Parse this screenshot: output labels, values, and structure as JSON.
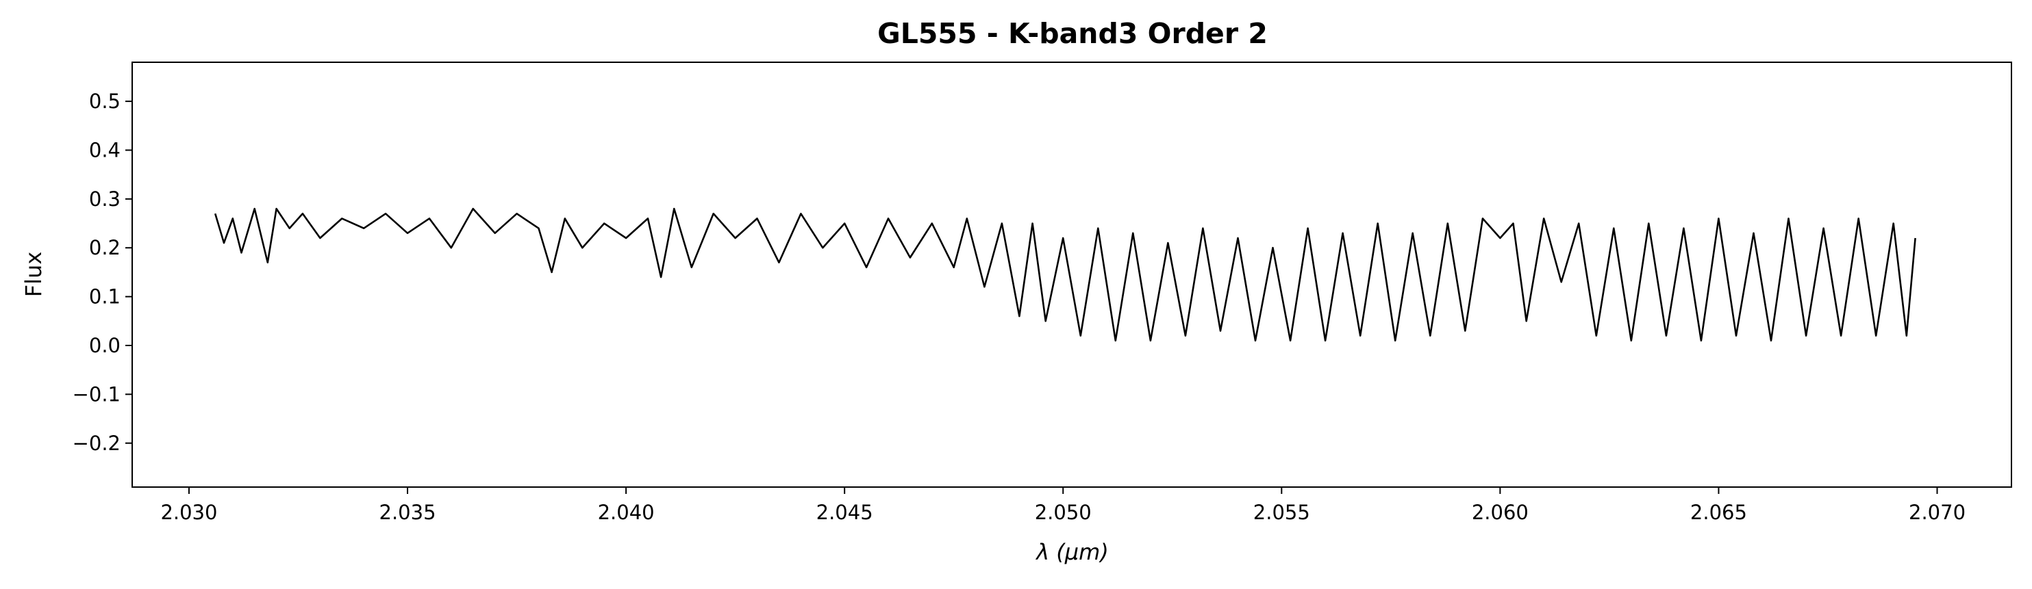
{
  "chart_data": {
    "type": "line",
    "title": "GL555 - K-band3 Order 2",
    "xlabel": "λ (μm)",
    "ylabel": "Flux",
    "xlim": [
      2.0287,
      2.0717
    ],
    "ylim": [
      -0.29,
      0.58
    ],
    "xticks": [
      "2.030",
      "2.035",
      "2.040",
      "2.045",
      "2.050",
      "2.055",
      "2.060",
      "2.065",
      "2.070"
    ],
    "yticks": [
      "0.5",
      "0.4",
      "0.3",
      "0.2",
      "0.1",
      "0.0",
      "−0.1",
      "−0.2"
    ],
    "grid": false,
    "line_color": "#000000",
    "series": [
      {
        "x": [
          2.0306,
          2.0308,
          2.031,
          2.0312,
          2.0315,
          2.0318,
          2.032,
          2.0323,
          2.0326,
          2.033,
          2.0335,
          2.034,
          2.0345,
          2.035,
          2.0355,
          2.036,
          2.0365,
          2.037,
          2.0375,
          2.038,
          2.0383,
          2.0386,
          2.039,
          2.0395,
          2.04,
          2.0405,
          2.0408,
          2.0411,
          2.0415,
          2.042,
          2.0425,
          2.043,
          2.0435,
          2.044,
          2.0445,
          2.045,
          2.0455,
          2.046,
          2.0465,
          2.047,
          2.0475,
          2.0478,
          2.0482,
          2.0486,
          2.049,
          2.0493,
          2.0496,
          2.05,
          2.0504,
          2.0508,
          2.0512,
          2.0516,
          2.052,
          2.0524,
          2.0528,
          2.0532,
          2.0536,
          2.054,
          2.0544,
          2.0548,
          2.0552,
          2.0556,
          2.056,
          2.0564,
          2.0568,
          2.0572,
          2.0576,
          2.058,
          2.0584,
          2.0588,
          2.0592,
          2.0596,
          2.06,
          2.0603,
          2.0606,
          2.061,
          2.0614,
          2.0618,
          2.0622,
          2.0626,
          2.063,
          2.0634,
          2.0638,
          2.0642,
          2.0646,
          2.065,
          2.0654,
          2.0658,
          2.0662,
          2.0666,
          2.067,
          2.0674,
          2.0678,
          2.0682,
          2.0686,
          2.069,
          2.0693,
          2.0695
        ],
        "values": [
          0.27,
          0.21,
          0.26,
          0.19,
          0.28,
          0.17,
          0.28,
          0.24,
          0.27,
          0.22,
          0.26,
          0.24,
          0.27,
          0.23,
          0.26,
          0.2,
          0.28,
          0.23,
          0.27,
          0.24,
          0.15,
          0.26,
          0.2,
          0.25,
          0.22,
          0.26,
          0.14,
          0.28,
          0.16,
          0.27,
          0.22,
          0.26,
          0.17,
          0.27,
          0.2,
          0.25,
          0.16,
          0.26,
          0.18,
          0.25,
          0.16,
          0.26,
          0.12,
          0.25,
          0.06,
          0.25,
          0.05,
          0.22,
          0.02,
          0.24,
          0.01,
          0.23,
          0.01,
          0.21,
          0.02,
          0.24,
          0.03,
          0.22,
          0.01,
          0.2,
          0.01,
          0.24,
          0.01,
          0.23,
          0.02,
          0.25,
          0.01,
          0.23,
          0.02,
          0.25,
          0.03,
          0.26,
          0.22,
          0.25,
          0.05,
          0.26,
          0.13,
          0.25,
          0.02,
          0.24,
          0.01,
          0.25,
          0.02,
          0.24,
          0.01,
          0.26,
          0.02,
          0.23,
          0.01,
          0.26,
          0.02,
          0.24,
          0.02,
          0.26,
          0.02,
          0.25,
          0.02,
          0.22
        ]
      }
    ]
  }
}
